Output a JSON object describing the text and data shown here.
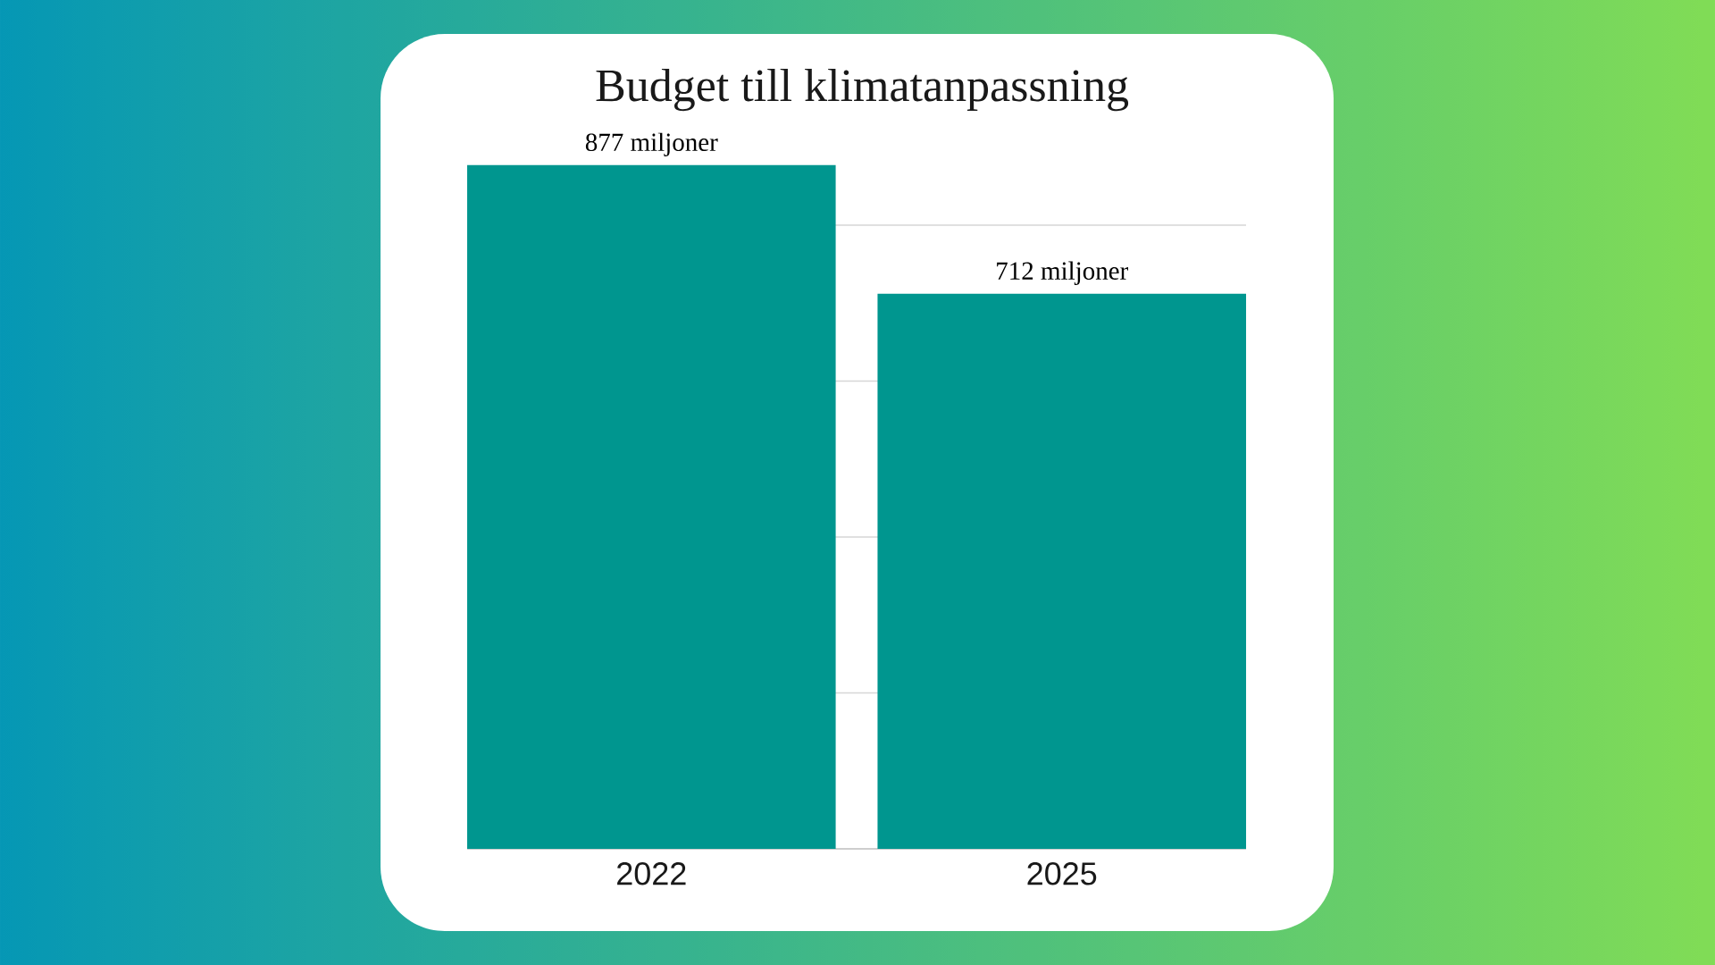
{
  "chart_data": {
    "type": "bar",
    "title": "Budget till klimatanpassning",
    "categories": [
      "2022",
      "2025"
    ],
    "values": [
      877,
      712
    ],
    "value_labels": [
      "877 miljoner",
      "712 miljoner"
    ],
    "color": "#00968f",
    "ylim": [
      0,
      877
    ],
    "yticks": [
      {
        "value": 200,
        "label": null
      },
      {
        "value": 400,
        "label": null
      },
      {
        "value": 600,
        "label": null
      },
      {
        "value": 800,
        "label": null
      }
    ],
    "grid": "y",
    "tick_labels": "x"
  }
}
